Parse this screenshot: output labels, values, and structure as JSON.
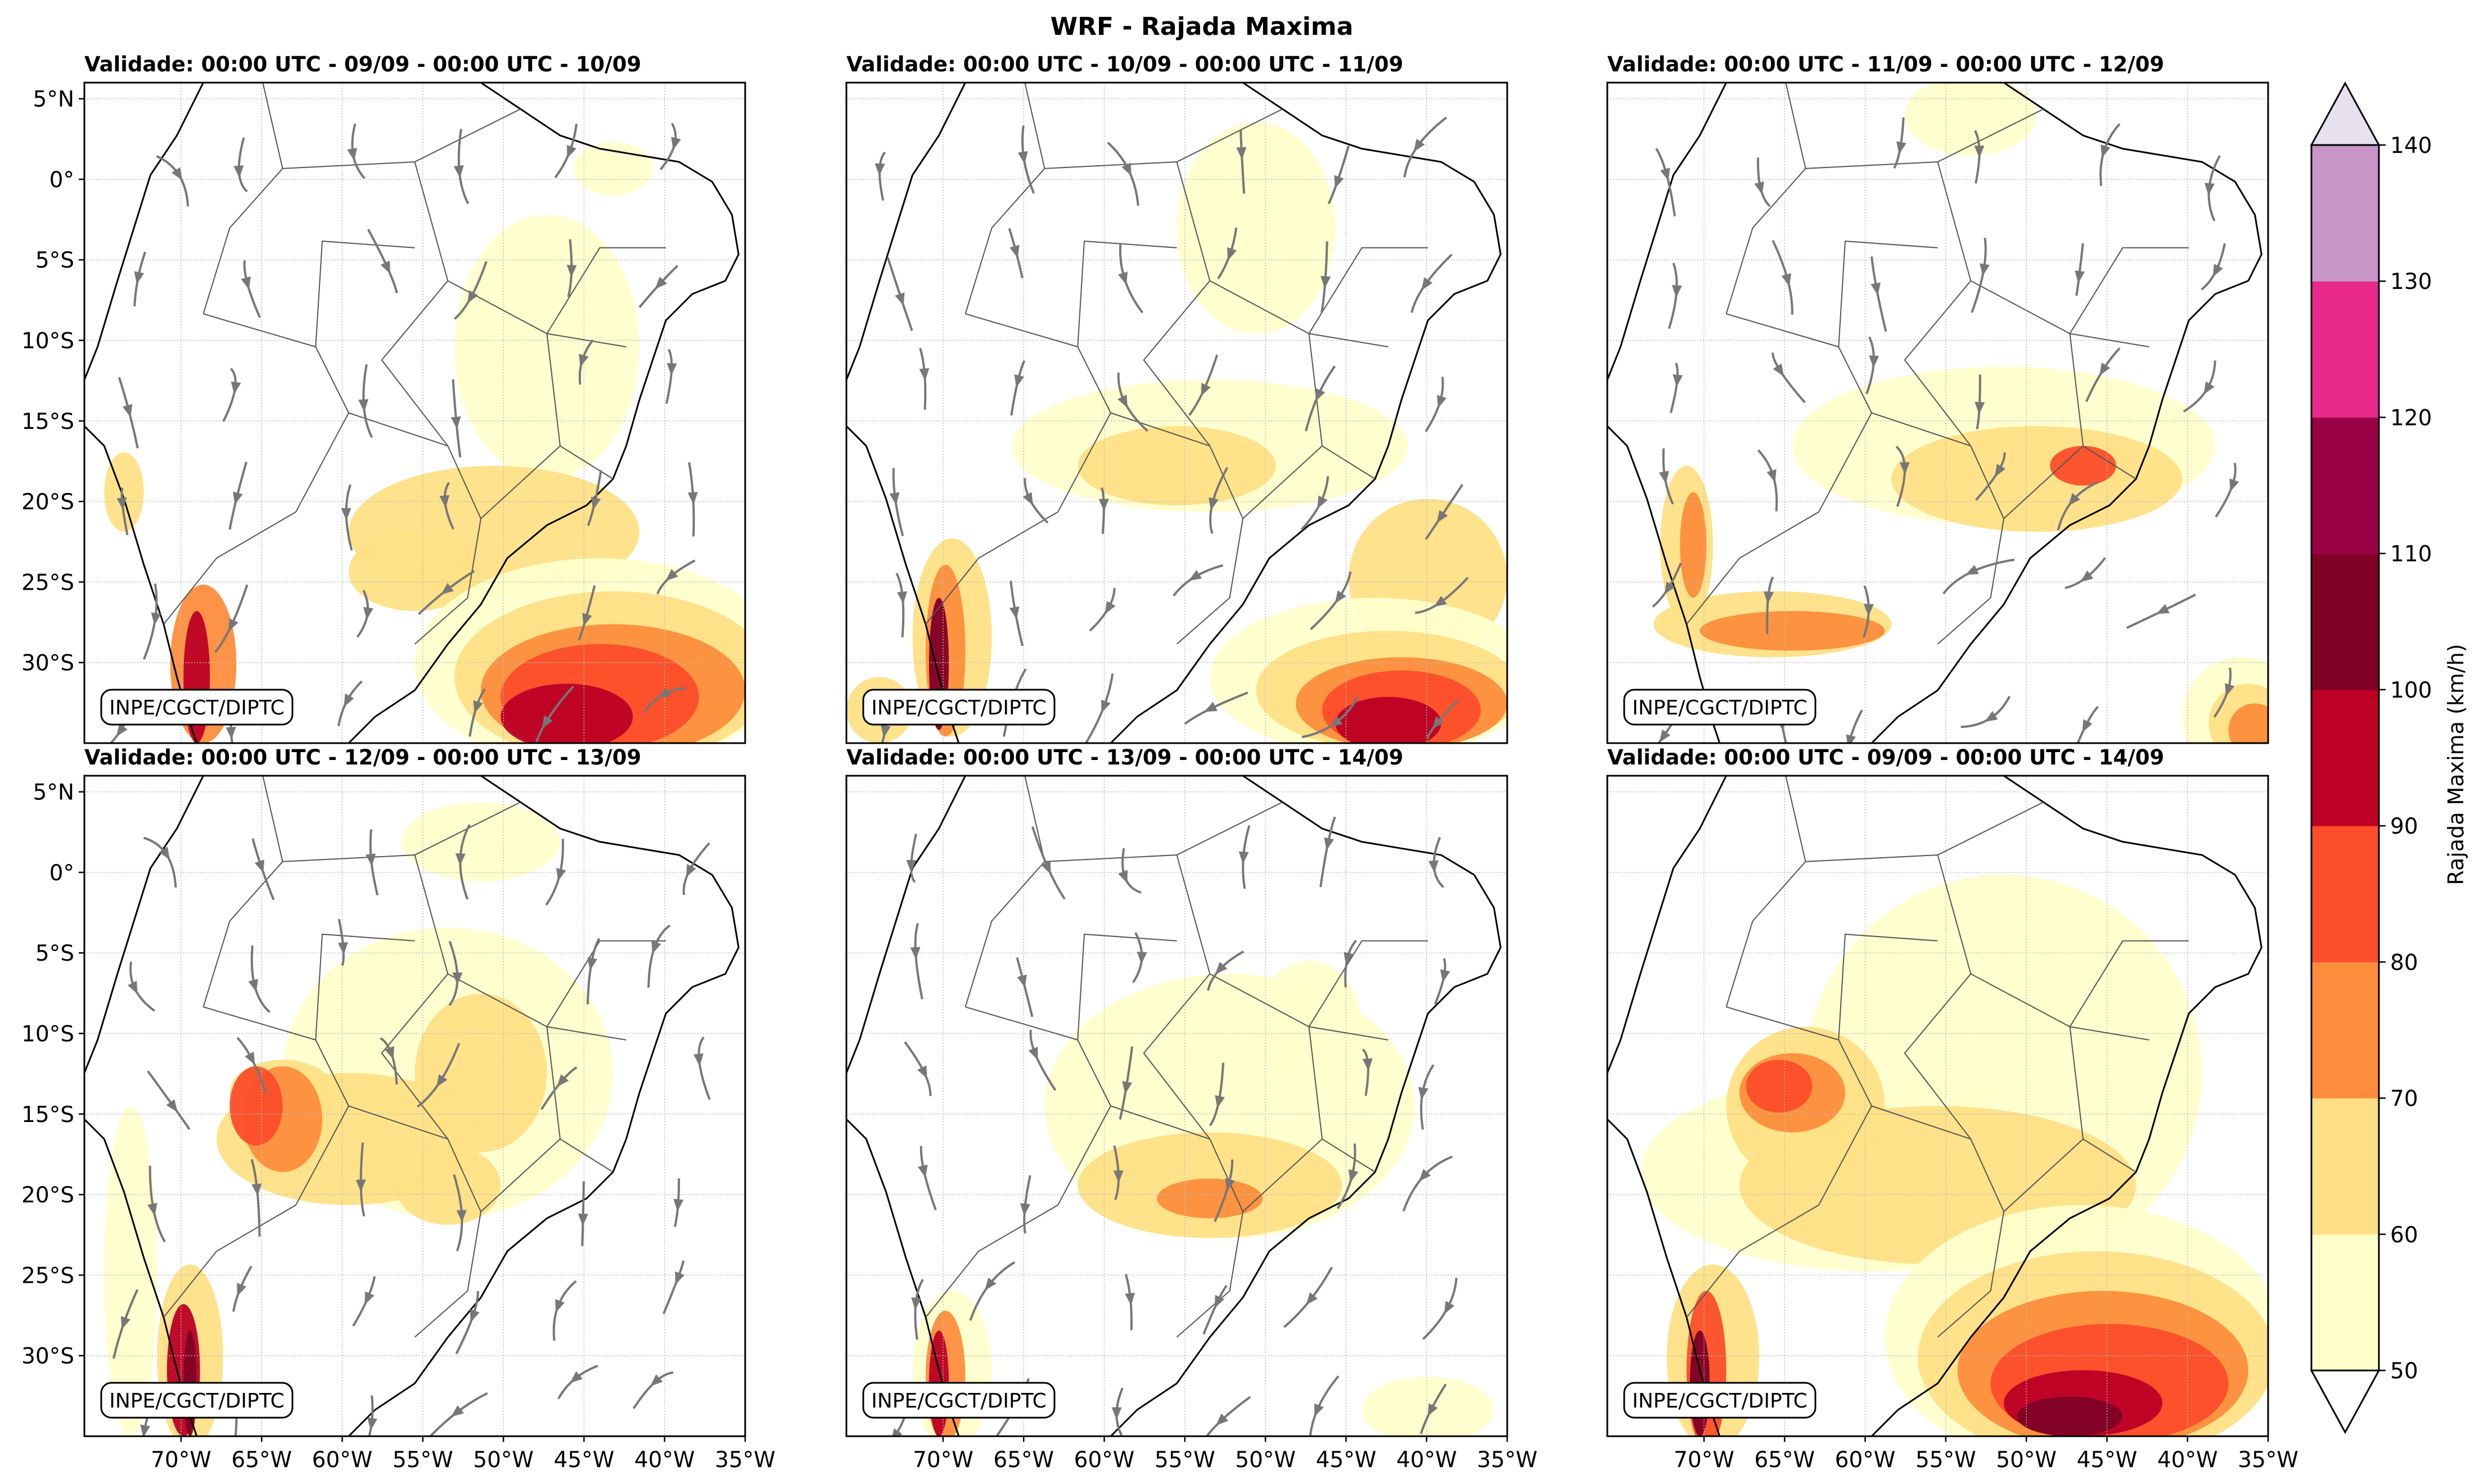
{
  "figure": {
    "title": "WRF - Rajada Maxima",
    "credit": "INPE/CGCT/DIPTC",
    "colorbar_label": "Rajada Maxima (km/h)"
  },
  "panels": [
    {
      "title": "Validade: 00:00 UTC - 09/09 - 00:00 UTC - 10/09"
    },
    {
      "title": "Validade: 00:00 UTC - 10/09 - 00:00 UTC - 11/09"
    },
    {
      "title": "Validade: 00:00 UTC - 11/09 - 00:00 UTC - 12/09"
    },
    {
      "title": "Validade: 00:00 UTC - 12/09 - 00:00 UTC - 13/09"
    },
    {
      "title": "Validade: 00:00 UTC - 13/09 - 00:00 UTC - 14/09"
    },
    {
      "title": "Validade: 00:00 UTC - 09/09 - 00:00 UTC - 14/09"
    }
  ],
  "axes": {
    "lat_ticks": [
      "5°N",
      "0°",
      "5°S",
      "10°S",
      "15°S",
      "20°S",
      "25°S",
      "30°S"
    ],
    "lon_ticks": [
      "70°W",
      "65°W",
      "60°W",
      "55°W",
      "50°W",
      "45°W",
      "40°W",
      "35°W"
    ]
  },
  "chart_data": {
    "type": "heatmap",
    "title": "WRF - Rajada Maxima",
    "variable": "Rajada Maxima (km/h)",
    "extent_deg": {
      "lon": [
        -76,
        -35
      ],
      "lat": [
        -35,
        6
      ]
    },
    "lon_ticks_deg": [
      -70,
      -65,
      -60,
      -55,
      -50,
      -45,
      -40,
      -35
    ],
    "lat_ticks_deg": [
      5,
      0,
      -5,
      -10,
      -15,
      -20,
      -25,
      -30
    ],
    "colorbar": {
      "levels": [
        50,
        60,
        70,
        80,
        90,
        100,
        110,
        120,
        130,
        140
      ],
      "tick_labels": [
        "50",
        "60",
        "70",
        "80",
        "90",
        "100",
        "110",
        "120",
        "130",
        "140"
      ],
      "colors": [
        "#ffffcc",
        "#ffe086",
        "#fd8d3c",
        "#fc4e2a",
        "#bd0026",
        "#800026",
        "#990045",
        "#e7298a",
        "#c994c7",
        "#e7e1ef"
      ],
      "extend": "both",
      "under_color": "#ffffff"
    },
    "overlays": [
      "wind streamlines (gray)",
      "country and state borders",
      "coastline"
    ]
  },
  "palette": {
    "frame": "#000000",
    "streamline": "#777777",
    "border": "#555555",
    "coast": "#000000"
  }
}
